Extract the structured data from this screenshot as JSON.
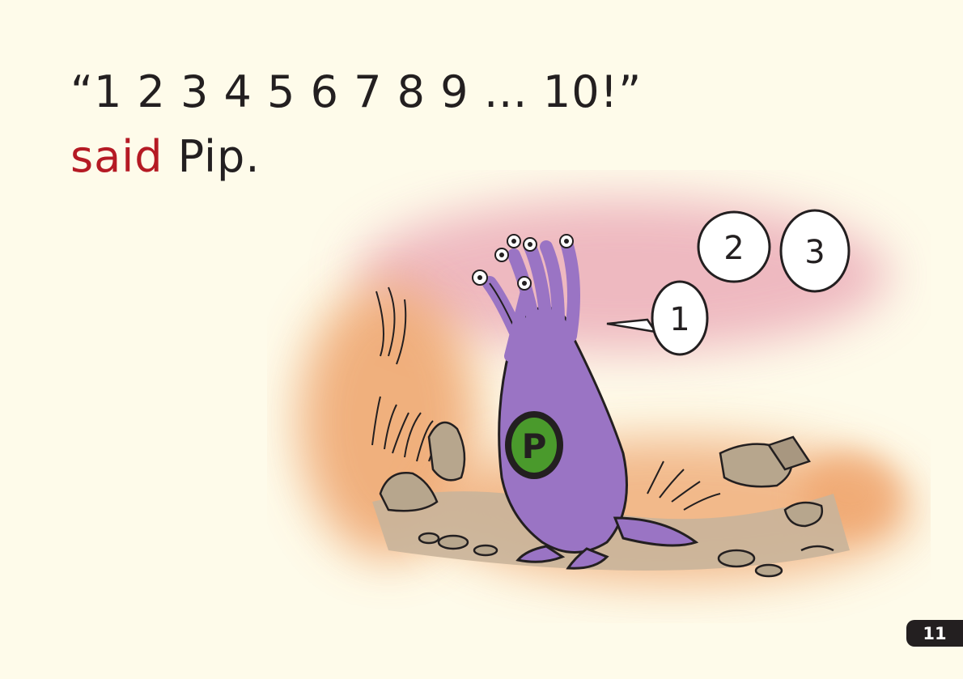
{
  "story": {
    "line1": "“1 2 3 4 5 6 7 8 9 … 10!”",
    "line2_highlight": "said",
    "line2_rest": " Pip."
  },
  "illustration": {
    "bubble_numbers": [
      "1",
      "2",
      "3"
    ],
    "badge_letter": "P"
  },
  "page_number": "11",
  "colors": {
    "background": "#fefbea",
    "text": "#231f20",
    "highlight": "#b51a24",
    "monster": "#9a74c4",
    "pouch": "#4a9a2c"
  }
}
